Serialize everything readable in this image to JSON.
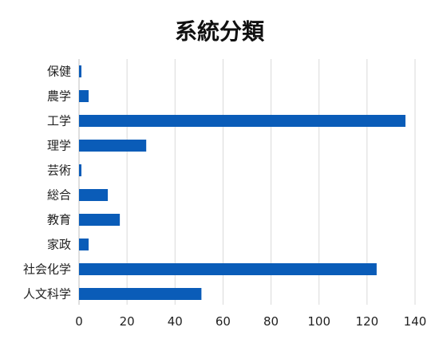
{
  "colors": {
    "bar": "#0a5cb8",
    "grid": "#d9d9d9",
    "axis": "#bfbfbf",
    "text": "#222222"
  },
  "chart_data": {
    "type": "bar",
    "orientation": "horizontal",
    "title": "系統分類",
    "xlabel": "",
    "ylabel": "",
    "categories": [
      "保健",
      "農学",
      "工学",
      "理学",
      "芸術",
      "総合",
      "教育",
      "家政",
      "社会化学",
      "人文科学"
    ],
    "values": [
      1,
      4,
      136,
      28,
      1,
      12,
      17,
      4,
      124,
      51
    ],
    "xlim": [
      0,
      140
    ],
    "x_ticks": [
      0,
      20,
      40,
      60,
      80,
      100,
      120,
      140
    ],
    "x_tick_labels": [
      "0",
      "20",
      "40",
      "60",
      "80",
      "100",
      "120",
      "140"
    ],
    "grid": true,
    "legend": "none"
  }
}
